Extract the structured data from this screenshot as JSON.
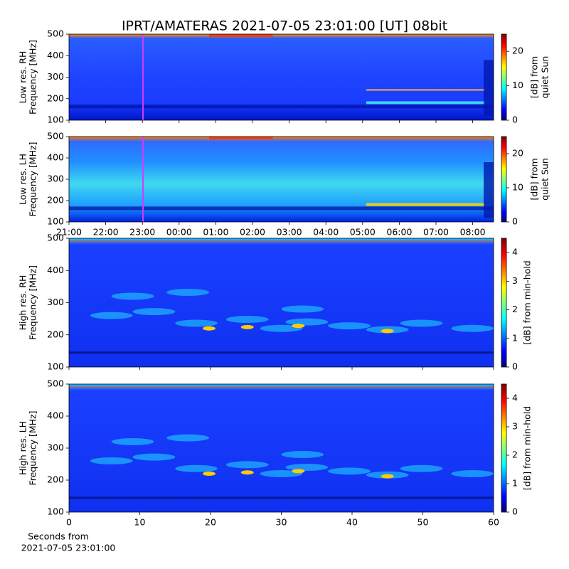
{
  "title": "IPRT/AMATERAS 2021-07-05 23:01:00 [UT]   08bit",
  "chart_data": [
    {
      "type": "heatmap",
      "ylabel": [
        "Low res. RH",
        "Frequency [MHz]"
      ],
      "xlim": [
        0,
        11.57
      ],
      "xticks": [
        0,
        1,
        2,
        3,
        4,
        5,
        6,
        7,
        8,
        9,
        10,
        11
      ],
      "ylim": [
        100,
        500
      ],
      "yticks": [
        100,
        200,
        300,
        400,
        500
      ],
      "marker_x": 2.0167,
      "marker_color": "#d23cff",
      "colorbar": {
        "lim": [
          0,
          25
        ],
        "ticks": [
          0,
          10,
          20
        ],
        "label": [
          "[dB] from",
          "quiet Sun"
        ]
      }
    },
    {
      "type": "heatmap",
      "ylabel": [
        "Low res. LH",
        "Frequency [MHz]"
      ],
      "xlim": [
        0,
        11.57
      ],
      "xticks": [
        {
          "value": 0,
          "label": "21:00"
        },
        {
          "value": 1,
          "label": "22:00"
        },
        {
          "value": 2,
          "label": "23:00"
        },
        {
          "value": 3,
          "label": "00:00"
        },
        {
          "value": 4,
          "label": "01:00"
        },
        {
          "value": 5,
          "label": "02:00"
        },
        {
          "value": 6,
          "label": "03:00"
        },
        {
          "value": 7,
          "label": "04:00"
        },
        {
          "value": 8,
          "label": "05:00"
        },
        {
          "value": 9,
          "label": "06:00"
        },
        {
          "value": 10,
          "label": "07:00"
        },
        {
          "value": 11,
          "label": "08:00"
        }
      ],
      "ylim": [
        100,
        500
      ],
      "yticks": [
        100,
        200,
        300,
        400,
        500
      ],
      "marker_x": 2.0167,
      "marker_color": "#d23cff",
      "colorbar": {
        "lim": [
          0,
          25
        ],
        "ticks": [
          0,
          10,
          20
        ],
        "label": [
          "[dB] from",
          "quiet Sun"
        ]
      }
    },
    {
      "type": "heatmap",
      "ylabel": [
        "High res. RH",
        "Frequency [MHz]"
      ],
      "xlim": [
        0,
        60
      ],
      "xticks": [
        0,
        10,
        20,
        30,
        40,
        50,
        60
      ],
      "ylim": [
        100,
        500
      ],
      "yticks": [
        100,
        200,
        300,
        400,
        500
      ],
      "colorbar": {
        "lim": [
          0,
          4.5
        ],
        "ticks": [
          0,
          1,
          2,
          3,
          4
        ],
        "label": [
          "[dB] from min-hold"
        ]
      }
    },
    {
      "type": "heatmap",
      "ylabel": [
        "High res. LH",
        "Frequency [MHz]"
      ],
      "xlabel": [
        "Seconds from",
        "2021-07-05 23:01:00"
      ],
      "xlim": [
        0,
        60
      ],
      "xticks": [
        0,
        10,
        20,
        30,
        40,
        50,
        60
      ],
      "show_xtick_labels": true,
      "ylim": [
        100,
        500
      ],
      "yticks": [
        100,
        200,
        300,
        400,
        500
      ],
      "colorbar": {
        "lim": [
          0,
          4.5
        ],
        "ticks": [
          0,
          1,
          2,
          3,
          4
        ],
        "label": [
          "[dB] from min-hold"
        ]
      }
    }
  ]
}
